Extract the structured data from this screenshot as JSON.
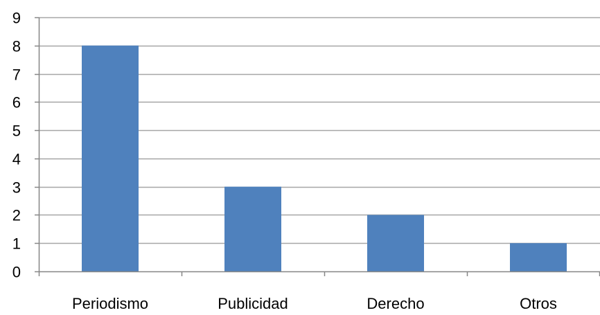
{
  "chart_data": {
    "type": "bar",
    "categories": [
      "Periodismo",
      "Publicidad",
      "Derecho",
      "Otros"
    ],
    "values": [
      8,
      3,
      2,
      1
    ],
    "title": "",
    "xlabel": "",
    "ylabel": "",
    "ylim": [
      0,
      9
    ],
    "yticks": [
      "0",
      "1",
      "2",
      "3",
      "4",
      "5",
      "6",
      "7",
      "8",
      "9"
    ],
    "grid": true,
    "legend": "none",
    "bar_color": "#4f81bd",
    "grid_color": "#a6a6a6",
    "axis_color": "#868686"
  }
}
